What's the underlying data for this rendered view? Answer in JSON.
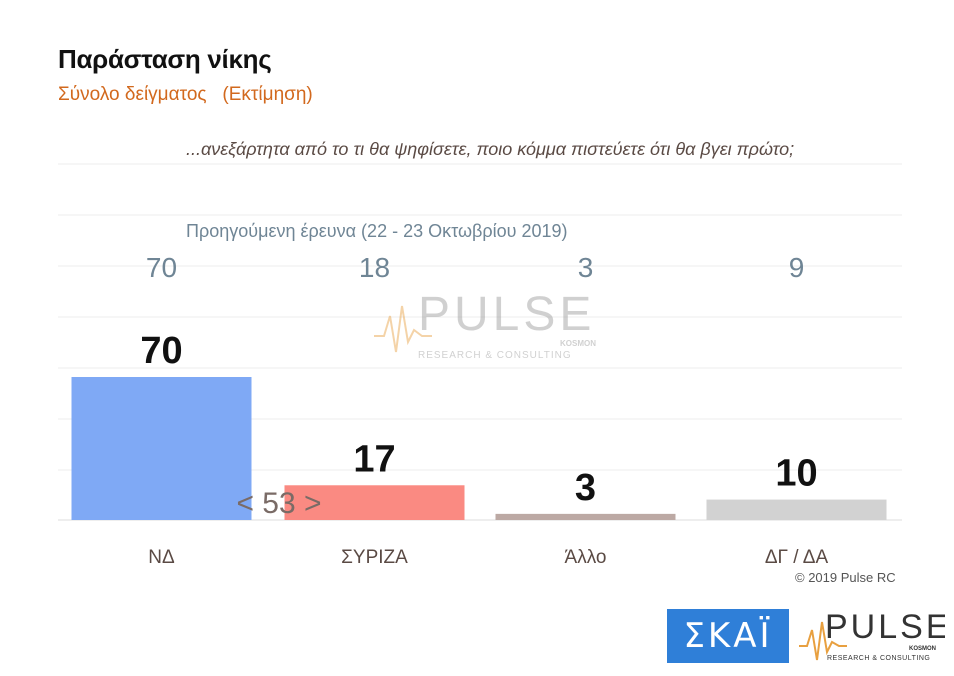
{
  "chart_data": {
    "type": "bar",
    "title": "Παράσταση νίκης",
    "subtitle": "Σύνολο δείγματος   (Εκτίμηση)",
    "question": "...ανεξάρτητα από το τι θα ψηφίσετε, ποιο κόμμα πιστεύετε ότι θα βγει πρώτο;",
    "categories": [
      "ΝΔ",
      "ΣΥΡΙΖΑ",
      "Άλλο",
      "ΔΓ / ΔΑ"
    ],
    "values": [
      70,
      17,
      3,
      10
    ],
    "value_labels": [
      "70",
      "17",
      "3",
      "10"
    ],
    "colors": [
      "#7fa9f5",
      "#fa8a82",
      "#bca9a4",
      "#d2d2d2"
    ],
    "previous_label": "Προηγούμενη έρευνα  (22 - 23  Οκτωβρίου  2019)",
    "previous_values": [
      "70",
      "18",
      "3",
      "9"
    ],
    "annotation": "< 53 >",
    "ylim": [
      0,
      70
    ],
    "grid": true,
    "xlabel": "",
    "ylabel": ""
  },
  "copyright": "© 2019 Pulse RC",
  "logos": {
    "skai": "ΣΚΑΪ",
    "pulse": "PULSE",
    "pulse_tag": "KOSMON",
    "pulse_sub": "RESEARCH & CONSULTING"
  }
}
